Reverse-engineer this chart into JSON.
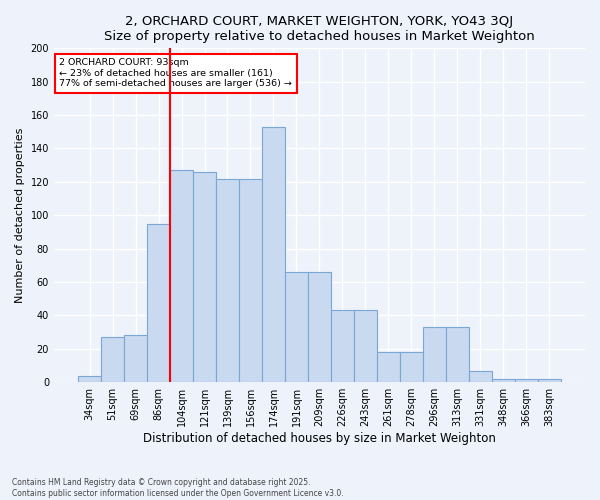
{
  "title": "2, ORCHARD COURT, MARKET WEIGHTON, YORK, YO43 3QJ",
  "subtitle": "Size of property relative to detached houses in Market Weighton",
  "xlabel": "Distribution of detached houses by size in Market Weighton",
  "ylabel": "Number of detached properties",
  "categories": [
    "34sqm",
    "51sqm",
    "69sqm",
    "86sqm",
    "104sqm",
    "121sqm",
    "139sqm",
    "156sqm",
    "174sqm",
    "191sqm",
    "209sqm",
    "226sqm",
    "243sqm",
    "261sqm",
    "278sqm",
    "296sqm",
    "313sqm",
    "331sqm",
    "348sqm",
    "366sqm",
    "383sqm"
  ],
  "bar_heights": [
    4,
    27,
    28,
    95,
    127,
    126,
    122,
    122,
    153,
    66,
    66,
    43,
    43,
    18,
    18,
    33,
    33,
    7,
    2,
    2,
    2
  ],
  "bar_color": "#c9d9f0",
  "bar_edge_color": "#7ba7d4",
  "vline_x": 3.5,
  "vline_color": "red",
  "annotation_line1": "2 ORCHARD COURT: 93sqm",
  "annotation_line2": "← 23% of detached houses are smaller (161)",
  "annotation_line3": "77% of semi-detached houses are larger (536) →",
  "annotation_box_color": "white",
  "annotation_box_edge_color": "red",
  "ylim": [
    0,
    200
  ],
  "yticks": [
    0,
    20,
    40,
    60,
    80,
    100,
    120,
    140,
    160,
    180,
    200
  ],
  "background_color": "#eef2fb",
  "grid_color": "#ffffff",
  "footer_line1": "Contains HM Land Registry data © Crown copyright and database right 2025.",
  "footer_line2": "Contains public sector information licensed under the Open Government Licence v3.0."
}
